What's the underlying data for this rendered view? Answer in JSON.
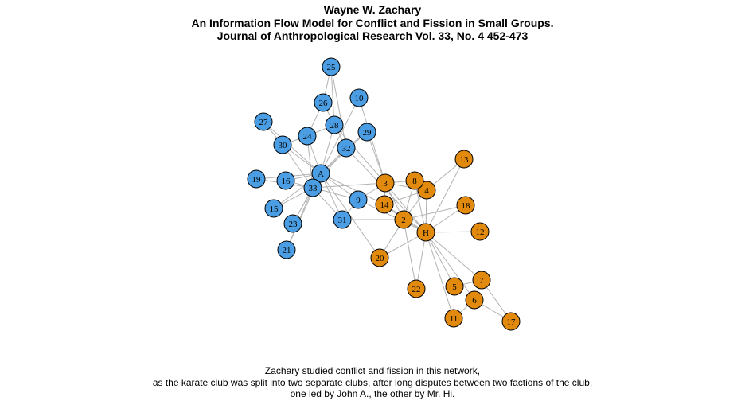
{
  "header": {
    "author": "Wayne W. Zachary",
    "title": "An Information Flow Model for Conflict and Fission in Small Groups.",
    "journal": "Journal of Anthropological Research Vol. 33, No. 4 452-473"
  },
  "caption": {
    "line1": "Zachary studied conflict and fission in this network,",
    "line2": "as the karate club was split into two separate clubs, after long disputes between two factions of the club,",
    "line3": "one led by John A., the other by Mr. Hi."
  },
  "colors": {
    "faction_a": "#4b9ee3",
    "faction_h": "#e18a0e",
    "edge": "#b3b3b3"
  },
  "nodes": [
    {
      "id": "A",
      "faction": "a"
    },
    {
      "id": "H",
      "faction": "h"
    },
    {
      "id": "2",
      "faction": "h"
    },
    {
      "id": "3",
      "faction": "h"
    },
    {
      "id": "4",
      "faction": "h"
    },
    {
      "id": "5",
      "faction": "h"
    },
    {
      "id": "6",
      "faction": "h"
    },
    {
      "id": "7",
      "faction": "h"
    },
    {
      "id": "8",
      "faction": "h"
    },
    {
      "id": "9",
      "faction": "a"
    },
    {
      "id": "10",
      "faction": "a"
    },
    {
      "id": "11",
      "faction": "h"
    },
    {
      "id": "12",
      "faction": "h"
    },
    {
      "id": "13",
      "faction": "h"
    },
    {
      "id": "14",
      "faction": "h"
    },
    {
      "id": "15",
      "faction": "a"
    },
    {
      "id": "16",
      "faction": "a"
    },
    {
      "id": "17",
      "faction": "h"
    },
    {
      "id": "18",
      "faction": "h"
    },
    {
      "id": "19",
      "faction": "a"
    },
    {
      "id": "20",
      "faction": "h"
    },
    {
      "id": "21",
      "faction": "a"
    },
    {
      "id": "22",
      "faction": "h"
    },
    {
      "id": "23",
      "faction": "a"
    },
    {
      "id": "24",
      "faction": "a"
    },
    {
      "id": "25",
      "faction": "a"
    },
    {
      "id": "26",
      "faction": "a"
    },
    {
      "id": "27",
      "faction": "a"
    },
    {
      "id": "28",
      "faction": "a"
    },
    {
      "id": "29",
      "faction": "a"
    },
    {
      "id": "30",
      "faction": "a"
    },
    {
      "id": "31",
      "faction": "a"
    },
    {
      "id": "32",
      "faction": "a"
    },
    {
      "id": "33",
      "faction": "a"
    }
  ],
  "edges": [
    [
      "H",
      "2"
    ],
    [
      "H",
      "3"
    ],
    [
      "H",
      "4"
    ],
    [
      "H",
      "5"
    ],
    [
      "H",
      "6"
    ],
    [
      "H",
      "7"
    ],
    [
      "H",
      "8"
    ],
    [
      "H",
      "9"
    ],
    [
      "H",
      "11"
    ],
    [
      "H",
      "12"
    ],
    [
      "H",
      "13"
    ],
    [
      "H",
      "14"
    ],
    [
      "H",
      "18"
    ],
    [
      "H",
      "20"
    ],
    [
      "H",
      "22"
    ],
    [
      "H",
      "32"
    ],
    [
      "2",
      "3"
    ],
    [
      "2",
      "4"
    ],
    [
      "2",
      "8"
    ],
    [
      "2",
      "14"
    ],
    [
      "2",
      "18"
    ],
    [
      "2",
      "20"
    ],
    [
      "2",
      "22"
    ],
    [
      "2",
      "31"
    ],
    [
      "3",
      "4"
    ],
    [
      "3",
      "8"
    ],
    [
      "3",
      "9"
    ],
    [
      "3",
      "10"
    ],
    [
      "3",
      "14"
    ],
    [
      "3",
      "28"
    ],
    [
      "3",
      "29"
    ],
    [
      "3",
      "33"
    ],
    [
      "4",
      "8"
    ],
    [
      "4",
      "13"
    ],
    [
      "4",
      "14"
    ],
    [
      "5",
      "7"
    ],
    [
      "5",
      "11"
    ],
    [
      "6",
      "7"
    ],
    [
      "6",
      "11"
    ],
    [
      "6",
      "17"
    ],
    [
      "7",
      "17"
    ],
    [
      "9",
      "31"
    ],
    [
      "9",
      "33"
    ],
    [
      "9",
      "A"
    ],
    [
      "10",
      "A"
    ],
    [
      "14",
      "A"
    ],
    [
      "15",
      "33"
    ],
    [
      "15",
      "A"
    ],
    [
      "16",
      "33"
    ],
    [
      "16",
      "A"
    ],
    [
      "19",
      "33"
    ],
    [
      "19",
      "A"
    ],
    [
      "20",
      "A"
    ],
    [
      "21",
      "33"
    ],
    [
      "21",
      "A"
    ],
    [
      "23",
      "33"
    ],
    [
      "23",
      "A"
    ],
    [
      "24",
      "26"
    ],
    [
      "24",
      "28"
    ],
    [
      "24",
      "30"
    ],
    [
      "24",
      "33"
    ],
    [
      "24",
      "A"
    ],
    [
      "25",
      "26"
    ],
    [
      "25",
      "28"
    ],
    [
      "25",
      "32"
    ],
    [
      "26",
      "32"
    ],
    [
      "27",
      "30"
    ],
    [
      "27",
      "A"
    ],
    [
      "28",
      "A"
    ],
    [
      "29",
      "32"
    ],
    [
      "29",
      "A"
    ],
    [
      "30",
      "33"
    ],
    [
      "30",
      "A"
    ],
    [
      "31",
      "33"
    ],
    [
      "31",
      "A"
    ],
    [
      "32",
      "33"
    ],
    [
      "32",
      "A"
    ],
    [
      "33",
      "A"
    ]
  ]
}
